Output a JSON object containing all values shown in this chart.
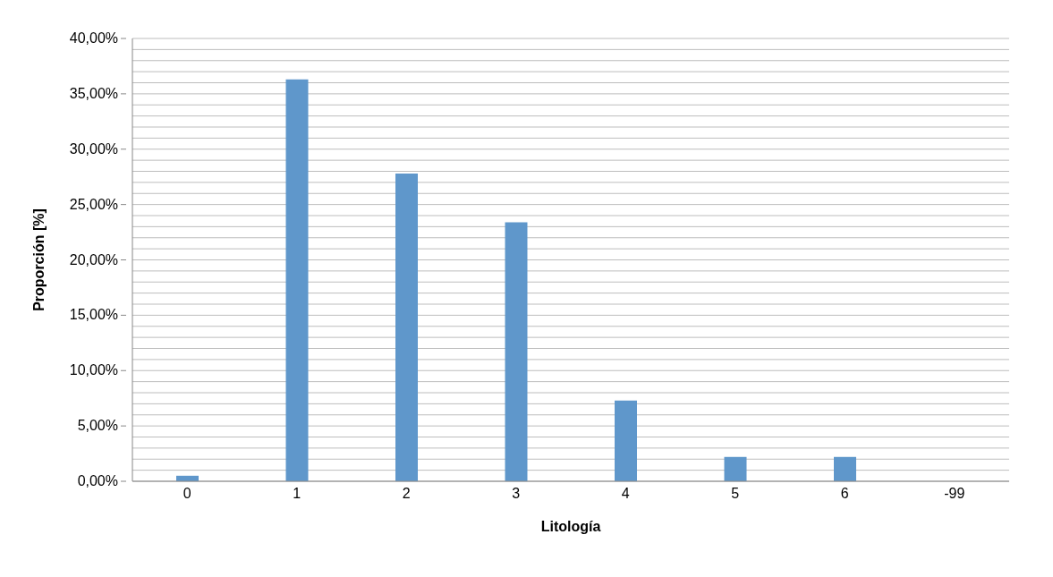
{
  "chart_data": {
    "type": "bar",
    "xlabel": "Litología",
    "ylabel": "Proporción [%]",
    "categories": [
      "0",
      "1",
      "2",
      "3",
      "4",
      "5",
      "6",
      "-99"
    ],
    "values": [
      0.5,
      36.3,
      27.8,
      23.4,
      7.3,
      2.2,
      2.2,
      0
    ],
    "color": "#5f97cb",
    "ylim": [
      0,
      40
    ],
    "yticks": [
      {
        "value": 0,
        "label": "0,00%"
      },
      {
        "value": 1,
        "label": null
      },
      {
        "value": 2,
        "label": null
      },
      {
        "value": 3,
        "label": null
      },
      {
        "value": 4,
        "label": null
      },
      {
        "value": 5,
        "label": "5,00%"
      },
      {
        "value": 6,
        "label": null
      },
      {
        "value": 7,
        "label": null
      },
      {
        "value": 8,
        "label": null
      },
      {
        "value": 9,
        "label": null
      },
      {
        "value": 10,
        "label": "10,00%"
      },
      {
        "value": 11,
        "label": null
      },
      {
        "value": 12,
        "label": null
      },
      {
        "value": 13,
        "label": null
      },
      {
        "value": 14,
        "label": null
      },
      {
        "value": 15,
        "label": "15,00%"
      },
      {
        "value": 16,
        "label": null
      },
      {
        "value": 17,
        "label": null
      },
      {
        "value": 18,
        "label": null
      },
      {
        "value": 19,
        "label": null
      },
      {
        "value": 20,
        "label": "20,00%"
      },
      {
        "value": 21,
        "label": null
      },
      {
        "value": 22,
        "label": null
      },
      {
        "value": 23,
        "label": null
      },
      {
        "value": 24,
        "label": null
      },
      {
        "value": 25,
        "label": "25,00%"
      },
      {
        "value": 26,
        "label": null
      },
      {
        "value": 27,
        "label": null
      },
      {
        "value": 28,
        "label": null
      },
      {
        "value": 29,
        "label": null
      },
      {
        "value": 30,
        "label": "30,00%"
      },
      {
        "value": 31,
        "label": null
      },
      {
        "value": 32,
        "label": null
      },
      {
        "value": 33,
        "label": null
      },
      {
        "value": 34,
        "label": null
      },
      {
        "value": 35,
        "label": "35,00%"
      },
      {
        "value": 36,
        "label": null
      },
      {
        "value": 37,
        "label": null
      },
      {
        "value": 38,
        "label": null
      },
      {
        "value": 39,
        "label": null
      },
      {
        "value": 40,
        "label": "40,00%"
      }
    ],
    "grid": "y"
  }
}
